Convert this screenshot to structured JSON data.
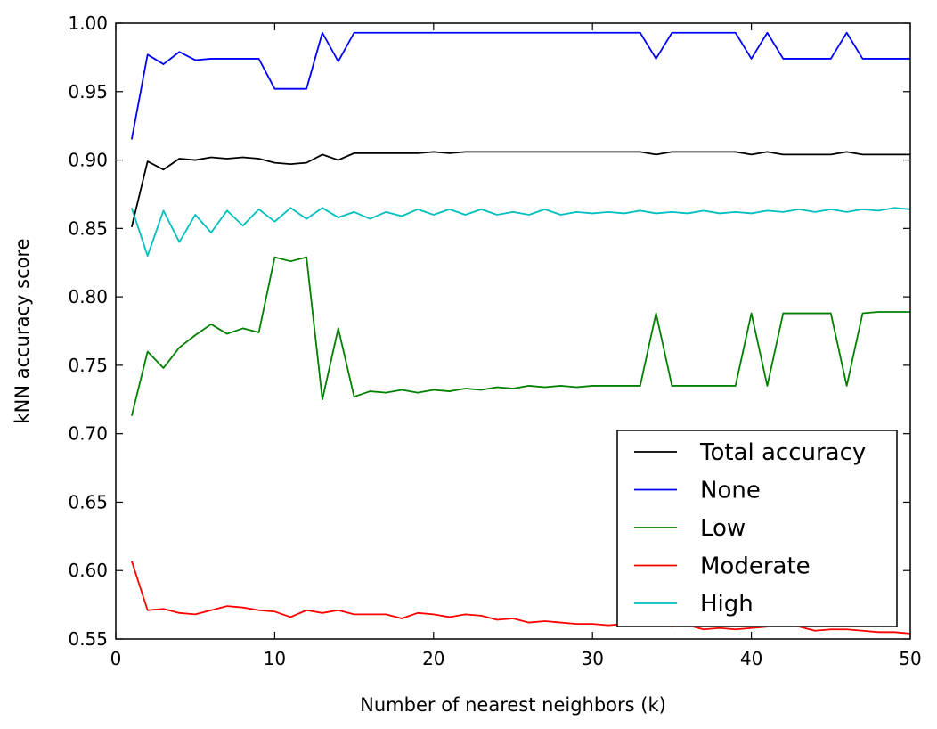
{
  "chart_data": {
    "type": "line",
    "title": "",
    "xlabel": "Number of nearest neighbors (k)",
    "ylabel": "kNN accuracy score",
    "xlim": [
      0,
      50
    ],
    "ylim": [
      0.55,
      1.0
    ],
    "xticks": [
      0,
      10,
      20,
      30,
      40,
      50
    ],
    "xtick_labels": [
      "0",
      "10",
      "20",
      "30",
      "40",
      "50"
    ],
    "yticks": [
      0.55,
      0.6,
      0.65,
      0.7,
      0.75,
      0.8,
      0.85,
      0.9,
      0.95,
      1.0
    ],
    "ytick_labels": [
      "0.55",
      "0.60",
      "0.65",
      "0.70",
      "0.75",
      "0.80",
      "0.85",
      "0.90",
      "0.95",
      "1.00"
    ],
    "grid": false,
    "legend_position": "bottom-right",
    "x": [
      1,
      2,
      3,
      4,
      5,
      6,
      7,
      8,
      9,
      10,
      11,
      12,
      13,
      14,
      15,
      16,
      17,
      18,
      19,
      20,
      21,
      22,
      23,
      24,
      25,
      26,
      27,
      28,
      29,
      30,
      31,
      32,
      33,
      34,
      35,
      36,
      37,
      38,
      39,
      40,
      41,
      42,
      43,
      44,
      45,
      46,
      47,
      48,
      49,
      50
    ],
    "series": [
      {
        "name": "Total accuracy",
        "color": "#000000",
        "values": [
          0.851,
          0.899,
          0.893,
          0.901,
          0.9,
          0.902,
          0.901,
          0.902,
          0.901,
          0.898,
          0.897,
          0.898,
          0.904,
          0.9,
          0.905,
          0.905,
          0.905,
          0.905,
          0.905,
          0.906,
          0.905,
          0.906,
          0.906,
          0.906,
          0.906,
          0.906,
          0.906,
          0.906,
          0.906,
          0.906,
          0.906,
          0.906,
          0.906,
          0.904,
          0.906,
          0.906,
          0.906,
          0.906,
          0.906,
          0.904,
          0.906,
          0.904,
          0.904,
          0.904,
          0.904,
          0.906,
          0.904,
          0.904,
          0.904,
          0.904
        ]
      },
      {
        "name": "None",
        "color": "#0000ff",
        "values": [
          0.915,
          0.977,
          0.97,
          0.979,
          0.973,
          0.974,
          0.974,
          0.974,
          0.974,
          0.952,
          0.952,
          0.952,
          0.993,
          0.972,
          0.993,
          0.993,
          0.993,
          0.993,
          0.993,
          0.993,
          0.993,
          0.993,
          0.993,
          0.993,
          0.993,
          0.993,
          0.993,
          0.993,
          0.993,
          0.993,
          0.993,
          0.993,
          0.993,
          0.974,
          0.993,
          0.993,
          0.993,
          0.993,
          0.993,
          0.974,
          0.993,
          0.974,
          0.974,
          0.974,
          0.974,
          0.993,
          0.974,
          0.974,
          0.974,
          0.974
        ]
      },
      {
        "name": "Low",
        "color": "#008000",
        "values": [
          0.713,
          0.76,
          0.748,
          0.763,
          0.772,
          0.78,
          0.773,
          0.777,
          0.774,
          0.829,
          0.826,
          0.829,
          0.725,
          0.777,
          0.727,
          0.731,
          0.73,
          0.732,
          0.73,
          0.732,
          0.731,
          0.733,
          0.732,
          0.734,
          0.733,
          0.735,
          0.734,
          0.735,
          0.734,
          0.735,
          0.735,
          0.735,
          0.735,
          0.788,
          0.735,
          0.735,
          0.735,
          0.735,
          0.735,
          0.788,
          0.735,
          0.788,
          0.788,
          0.788,
          0.788,
          0.735,
          0.788,
          0.789,
          0.789,
          0.789
        ]
      },
      {
        "name": "Moderate",
        "color": "#ff0000",
        "values": [
          0.607,
          0.571,
          0.572,
          0.569,
          0.568,
          0.571,
          0.574,
          0.573,
          0.571,
          0.57,
          0.566,
          0.571,
          0.569,
          0.571,
          0.568,
          0.568,
          0.568,
          0.565,
          0.569,
          0.568,
          0.566,
          0.568,
          0.567,
          0.564,
          0.565,
          0.562,
          0.563,
          0.562,
          0.561,
          0.561,
          0.56,
          0.561,
          0.562,
          0.561,
          0.559,
          0.56,
          0.557,
          0.558,
          0.557,
          0.558,
          0.559,
          0.561,
          0.559,
          0.556,
          0.557,
          0.557,
          0.556,
          0.555,
          0.555,
          0.554
        ]
      },
      {
        "name": "High",
        "color": "#00bfbf",
        "values": [
          0.865,
          0.83,
          0.863,
          0.84,
          0.86,
          0.847,
          0.863,
          0.852,
          0.864,
          0.855,
          0.865,
          0.857,
          0.865,
          0.858,
          0.862,
          0.857,
          0.862,
          0.859,
          0.864,
          0.86,
          0.864,
          0.86,
          0.864,
          0.86,
          0.862,
          0.86,
          0.864,
          0.86,
          0.862,
          0.861,
          0.862,
          0.861,
          0.863,
          0.861,
          0.862,
          0.861,
          0.863,
          0.861,
          0.862,
          0.861,
          0.863,
          0.862,
          0.864,
          0.862,
          0.864,
          0.862,
          0.864,
          0.863,
          0.865,
          0.864
        ]
      }
    ]
  }
}
